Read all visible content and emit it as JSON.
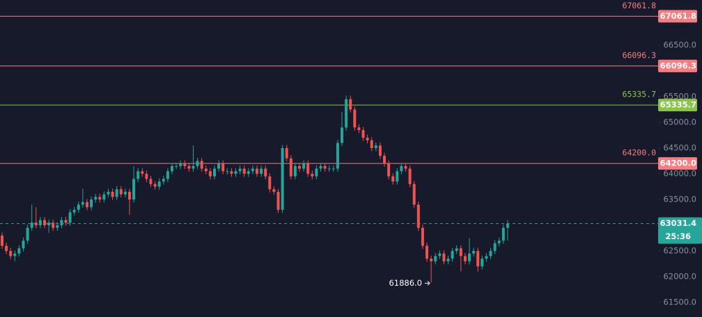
{
  "chart_data": {
    "type": "candlestick",
    "ylim": [
      61216,
      67378
    ],
    "yticks": [
      {
        "value": 61500,
        "label": "61500.0"
      },
      {
        "value": 62000,
        "label": "62000.0"
      },
      {
        "value": 62500,
        "label": "62500.0"
      },
      {
        "value": 63000,
        "label": "63000.0"
      },
      {
        "value": 63500,
        "label": "63500.0"
      },
      {
        "value": 64000,
        "label": "64000.0"
      },
      {
        "value": 64500,
        "label": "64500.0"
      },
      {
        "value": 65000,
        "label": "65000.0"
      },
      {
        "value": 65500,
        "label": "65500.0"
      },
      {
        "value": 66500,
        "label": "66500.0"
      }
    ],
    "up_color": "#26a69a",
    "down_color": "#ef5350",
    "open": [
      62800,
      62600,
      62500,
      62400,
      62450,
      62550,
      62700,
      62950,
      63050,
      63000,
      63100,
      63000,
      63050,
      62950,
      63000,
      63100,
      63050,
      63250,
      63300,
      63400,
      63450,
      63350,
      63500,
      63550,
      63500,
      63600,
      63650,
      63550,
      63700,
      63600,
      63650,
      63500,
      63900,
      64050,
      64000,
      63900,
      63800,
      63750,
      63850,
      63900,
      64050,
      64150,
      64150,
      64200,
      64150,
      64100,
      64150,
      64250,
      64100,
      64050,
      63950,
      64100,
      64200,
      64050,
      64050,
      64000,
      64050,
      64100,
      64000,
      64050,
      64100,
      64000,
      64100,
      63950,
      63700,
      63650,
      63300,
      64500,
      64300,
      63950,
      64150,
      64100,
      64200,
      64000,
      63950,
      64100,
      64150,
      64100,
      64100,
      64100,
      64600,
      64900,
      65450,
      65250,
      64900,
      64850,
      64700,
      64650,
      64500,
      64550,
      64350,
      64200,
      63950,
      63850,
      64050,
      64150,
      64100,
      63800,
      63400,
      62950,
      62600,
      62350,
      62300,
      62400,
      62450,
      62300,
      62350,
      62500,
      62550,
      62400,
      62300,
      62450,
      62500,
      62200,
      62350,
      62400,
      62500,
      62650,
      62700,
      62950
    ],
    "high": [
      62860,
      62660,
      62560,
      62510,
      62610,
      62760,
      63010,
      63400,
      63350,
      63160,
      63160,
      63110,
      63110,
      63060,
      63160,
      63160,
      63310,
      63360,
      63460,
      63710,
      63510,
      63560,
      63610,
      63610,
      63660,
      63710,
      63710,
      63760,
      63760,
      63710,
      63710,
      64150,
      64110,
      64110,
      64060,
      63960,
      63860,
      63910,
      63960,
      64110,
      64210,
      64210,
      64260,
      64260,
      64210,
      64550,
      64310,
      64310,
      64160,
      64110,
      64160,
      64260,
      64260,
      64110,
      64110,
      64110,
      64160,
      64160,
      64110,
      64160,
      64160,
      64160,
      64160,
      64010,
      63760,
      63710,
      64560,
      64560,
      64360,
      64210,
      64210,
      64260,
      64260,
      64060,
      64160,
      64210,
      64210,
      64160,
      64160,
      64660,
      65200,
      65520,
      65520,
      65310,
      64960,
      64910,
      64760,
      64710,
      64610,
      64610,
      64410,
      64260,
      64010,
      64110,
      64210,
      64210,
      64160,
      63860,
      63460,
      63010,
      62660,
      62410,
      62460,
      62510,
      62510,
      62410,
      62560,
      62610,
      62610,
      62460,
      62750,
      62560,
      62560,
      62410,
      62460,
      62560,
      62710,
      62760,
      63010,
      63100
    ],
    "low": [
      62540,
      62440,
      62340,
      62300,
      62390,
      62490,
      62640,
      62890,
      62940,
      62940,
      62940,
      62850,
      62890,
      62890,
      62940,
      62990,
      62990,
      63190,
      63240,
      63340,
      63290,
      63290,
      63440,
      63440,
      63440,
      63540,
      63490,
      63490,
      63540,
      63540,
      63200,
      63440,
      63840,
      63940,
      63840,
      63740,
      63690,
      63690,
      63790,
      63840,
      63990,
      64090,
      64090,
      64090,
      64040,
      64040,
      64090,
      64040,
      63990,
      63890,
      63890,
      64040,
      63990,
      63990,
      63940,
      63940,
      63990,
      63940,
      63940,
      63990,
      63940,
      63940,
      63890,
      63640,
      63590,
      63240,
      63240,
      64240,
      63890,
      63890,
      64040,
      64040,
      63940,
      63890,
      63890,
      64040,
      64040,
      64040,
      64040,
      64040,
      64540,
      64840,
      65190,
      64840,
      64790,
      64640,
      64590,
      64440,
      64440,
      64290,
      64140,
      63890,
      63790,
      63790,
      63990,
      64040,
      63740,
      63340,
      62890,
      62540,
      62290,
      61886,
      62240,
      62340,
      62240,
      62240,
      62290,
      62440,
      62100,
      62240,
      62240,
      62390,
      62100,
      62140,
      62290,
      62340,
      62440,
      62590,
      62640,
      62700
    ],
    "close": [
      62600,
      62500,
      62400,
      62450,
      62550,
      62700,
      62950,
      63050,
      63000,
      63100,
      63000,
      63050,
      62950,
      63000,
      63100,
      63050,
      63250,
      63300,
      63400,
      63450,
      63350,
      63500,
      63550,
      63500,
      63600,
      63650,
      63550,
      63700,
      63600,
      63650,
      63500,
      63900,
      64050,
      64000,
      63900,
      63800,
      63750,
      63850,
      63900,
      64050,
      64150,
      64150,
      64200,
      64150,
      64100,
      64150,
      64250,
      64100,
      64050,
      63950,
      64100,
      64200,
      64050,
      64050,
      64000,
      64050,
      64100,
      64000,
      64050,
      64100,
      64000,
      64100,
      63950,
      63700,
      63650,
      63300,
      64500,
      64300,
      63950,
      64150,
      64100,
      64200,
      64000,
      63950,
      64100,
      64150,
      64100,
      64100,
      64100,
      64600,
      64900,
      65450,
      65250,
      64900,
      64850,
      64700,
      64650,
      64500,
      64550,
      64350,
      64200,
      63950,
      63850,
      64050,
      64150,
      64100,
      63800,
      63400,
      62950,
      62600,
      62350,
      62300,
      62400,
      62450,
      62300,
      62350,
      62500,
      62550,
      62400,
      62300,
      62450,
      62500,
      62200,
      62350,
      62400,
      62500,
      62650,
      62700,
      62950,
      63031.4
    ],
    "price_lines": [
      {
        "value": 67061.8,
        "label": "67061.8",
        "color": "#f77c80"
      },
      {
        "value": 66096.3,
        "label": "66096.3",
        "color": "#f77c80"
      },
      {
        "value": 65335.7,
        "label": "65335.7",
        "color": "#8bc34a"
      },
      {
        "value": 64200.0,
        "label": "64200.0",
        "color": "#f77c80"
      }
    ],
    "current_price": {
      "value": 63031.4,
      "label": "63031.4",
      "countdown": "25:36",
      "color": "#26a69a"
    },
    "low_marker": {
      "value": 61886.0,
      "label": "61886.0"
    }
  }
}
